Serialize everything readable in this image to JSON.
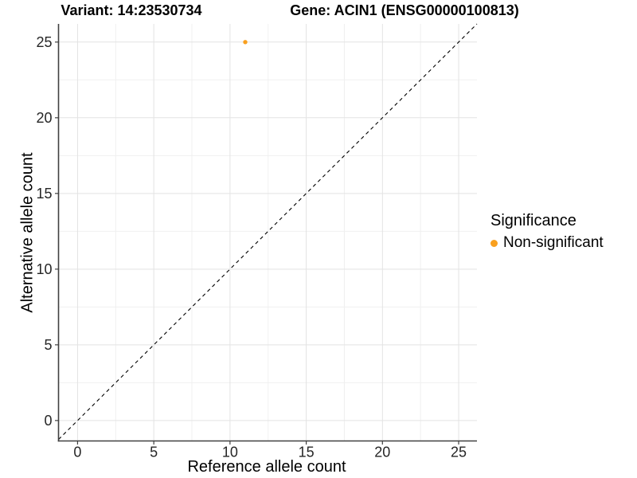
{
  "header": {
    "variant_title": "Variant: 14:23530734",
    "gene_title": "Gene: ACIN1 (ENSG00000100813)"
  },
  "chart_data": {
    "type": "scatter",
    "xlabel": "Reference allele count",
    "ylabel": "Alternative allele count",
    "xlim": [
      -1.25,
      26.2
    ],
    "ylim": [
      -1.35,
      26.2
    ],
    "x_ticks": [
      0,
      5,
      10,
      15,
      20,
      25
    ],
    "y_ticks": [
      0,
      5,
      10,
      15,
      20,
      25
    ],
    "x_minor_ticks": [
      2.5,
      7.5,
      12.5,
      17.5,
      22.5
    ],
    "y_minor_ticks": [
      2.5,
      7.5,
      12.5,
      17.5,
      22.5
    ],
    "grid": true,
    "points": [
      {
        "x": 11,
        "y": 25,
        "significance": "Non-significant"
      }
    ],
    "identity_line": {
      "equation": "y = x",
      "style": "dashed",
      "color": "#000000"
    },
    "legend": {
      "position": "right",
      "title": "Significance",
      "items": [
        {
          "label": "Non-significant",
          "color": "#F9A01E"
        }
      ]
    },
    "colors": {
      "point": "#F9A01E",
      "grid_major": "#E3E3E3",
      "grid_minor": "#F0F0F0",
      "axis_line": "#404040",
      "tick_text": "#262626"
    }
  }
}
